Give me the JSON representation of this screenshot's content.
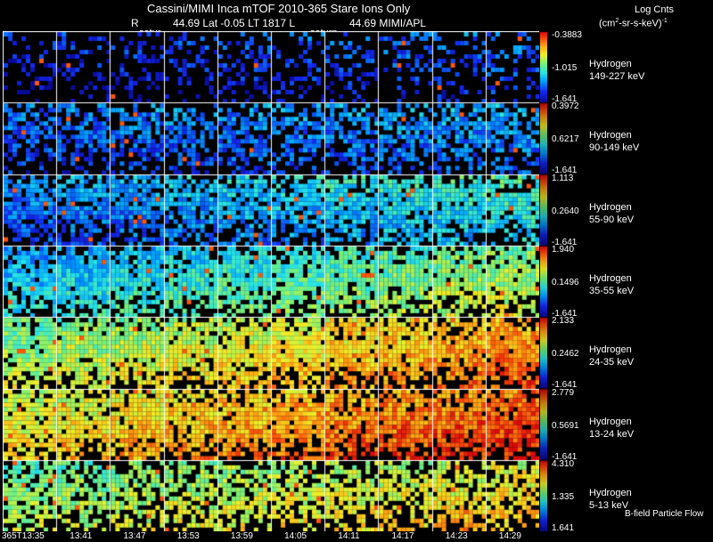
{
  "header": {
    "title": "Cassini/MIMI Inca mTOF  2010-365    Stare    Ions Only",
    "line2_r": "R",
    "line2_mid": "44.69 Lat -0.05 LT 1817 L",
    "line2_right": "44.69  MIMI/APL",
    "satur_left": "satur",
    "satur_right": "saturn",
    "legend_title": "Log Cnts",
    "legend_units_a": "(cm",
    "legend_units_sup1": "2",
    "legend_units_b": "-sr-s-keV)",
    "legend_units_sup2": "-1"
  },
  "panels": [
    {
      "species": "Hydrogen",
      "energy": "149-227 keV",
      "max": "-0.3883",
      "mid": "-1.015",
      "min": "-1.641",
      "intensity": 0.12,
      "fill": 0.35,
      "gradient": 0.2
    },
    {
      "species": "Hydrogen",
      "energy": "90-149 keV",
      "max": "0.3972",
      "mid": "0.6217",
      "min": "-1.641",
      "intensity": 0.22,
      "fill": 0.65,
      "gradient": 0.15
    },
    {
      "species": "Hydrogen",
      "energy": "55-90 keV",
      "max": "1.113",
      "mid": "0.2640",
      "min": "-1.641",
      "intensity": 0.3,
      "fill": 0.85,
      "gradient": 0.35
    },
    {
      "species": "Hydrogen",
      "energy": "35-55 keV",
      "max": "1.940",
      "mid": "0.1496",
      "min": "-1.641",
      "intensity": 0.45,
      "fill": 0.92,
      "gradient": 0.45
    },
    {
      "species": "Hydrogen",
      "energy": "24-35 keV",
      "max": "2.133",
      "mid": "0.2462",
      "min": "-1.641",
      "intensity": 0.68,
      "fill": 0.95,
      "gradient": 0.5
    },
    {
      "species": "Hydrogen",
      "energy": "13-24 keV",
      "max": "2.779",
      "mid": "0.5691",
      "min": "-1.641",
      "intensity": 0.78,
      "fill": 0.95,
      "gradient": 0.45
    },
    {
      "species": "Hydrogen",
      "energy": "5-13 keV",
      "max": "4.310",
      "mid": "1.335",
      "min": "1.641",
      "intensity": 0.62,
      "fill": 0.75,
      "gradient": 0.3
    }
  ],
  "bottom_note": "B-field Particle Flow",
  "time_ticks": [
    "365T13:35",
    "13:41",
    "13:47",
    "13:53",
    "13:59",
    "14:05",
    "14:11",
    "14:17",
    "14:23",
    "14:29"
  ],
  "colors": {
    "background": "#000000",
    "grid_lines": "#ffffff"
  }
}
